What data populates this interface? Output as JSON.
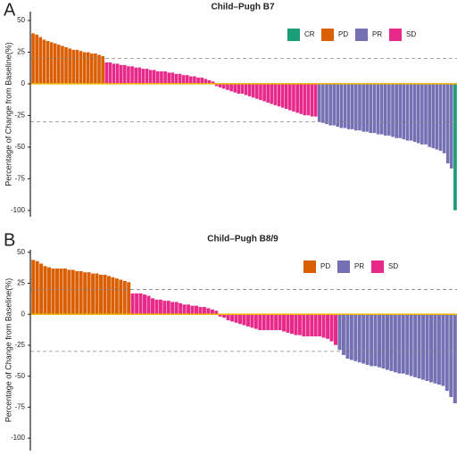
{
  "chart_data": [
    {
      "type": "bar",
      "label": "A",
      "title": "Child–Pugh B7",
      "ylabel": "Percentage of Change from Baseline(%)",
      "ylim": [
        -105,
        57
      ],
      "yticks": [
        50,
        25,
        0,
        -25,
        -50,
        -75,
        -100
      ],
      "ref_lines": [
        20,
        -30
      ],
      "series": [
        {
          "name": "CR",
          "color": "#1b9e77",
          "values": [
            -100
          ]
        },
        {
          "name": "PD",
          "color": "#d95f02",
          "values": [
            40,
            39,
            37,
            35,
            34,
            33,
            32,
            31,
            30,
            29,
            28,
            27,
            27,
            26,
            25,
            25,
            24,
            24,
            23,
            22
          ]
        },
        {
          "name": "PR",
          "color": "#7570b3",
          "values": [
            -30,
            -31,
            -32,
            -33,
            -33,
            -34,
            -35,
            -35,
            -36,
            -36,
            -37,
            -37,
            -38,
            -38,
            -39,
            -39,
            -40,
            -40,
            -41,
            -41,
            -42,
            -43,
            -43,
            -44,
            -45,
            -45,
            -46,
            -47,
            -48,
            -48,
            -50,
            -51,
            -52,
            -53,
            -55,
            -63,
            -67
          ]
        },
        {
          "name": "SD",
          "color": "#e7298a",
          "values": [
            17,
            17,
            16,
            16,
            15,
            15,
            14,
            14,
            13,
            13,
            12,
            12,
            11,
            11,
            10,
            10,
            10,
            9,
            9,
            8,
            8,
            7,
            7,
            6,
            6,
            5,
            5,
            4,
            3,
            2,
            -2,
            -3,
            -4,
            -5,
            -6,
            -7,
            -8,
            -8,
            -9,
            -10,
            -11,
            -12,
            -13,
            -14,
            -15,
            -16,
            -17,
            -18,
            -19,
            -20,
            -21,
            -22,
            -23,
            -24,
            -25,
            -25,
            -26,
            -26
          ]
        }
      ]
    },
    {
      "type": "bar",
      "label": "B",
      "title": "Child–Pugh B8/9",
      "ylabel": "Percentage of Change from Baseline(%)",
      "ylim": [
        -110,
        52
      ],
      "yticks": [
        50,
        25,
        0,
        -25,
        -50,
        -75,
        -100
      ],
      "ref_lines": [
        20,
        -30
      ],
      "series": [
        {
          "name": "PD",
          "color": "#d95f02",
          "values": [
            44,
            43,
            41,
            39,
            38,
            37,
            37,
            37,
            37,
            36,
            36,
            35,
            35,
            34,
            34,
            33,
            33,
            32,
            32,
            31,
            30,
            29,
            28,
            27,
            26
          ]
        },
        {
          "name": "PR",
          "color": "#7570b3",
          "values": [
            -29,
            -33,
            -36,
            -37,
            -38,
            -39,
            -40,
            -41,
            -42,
            -42,
            -43,
            -44,
            -45,
            -46,
            -47,
            -48,
            -48,
            -49,
            -50,
            -51,
            -52,
            -53,
            -54,
            -55,
            -56,
            -57,
            -58,
            -62,
            -67,
            -72
          ]
        },
        {
          "name": "SD",
          "color": "#e7298a",
          "values": [
            17,
            17,
            17,
            16,
            15,
            13,
            12,
            12,
            11,
            11,
            10,
            10,
            9,
            8,
            8,
            7,
            7,
            6,
            6,
            5,
            4,
            3,
            -2,
            -3,
            -5,
            -6,
            -7,
            -8,
            -9,
            -10,
            -11,
            -12,
            -13,
            -13,
            -13,
            -13,
            -13,
            -13,
            -14,
            -15,
            -16,
            -17,
            -17,
            -18,
            -18,
            -18,
            -18,
            -18,
            -19,
            -20,
            -22,
            -25
          ]
        }
      ]
    }
  ]
}
